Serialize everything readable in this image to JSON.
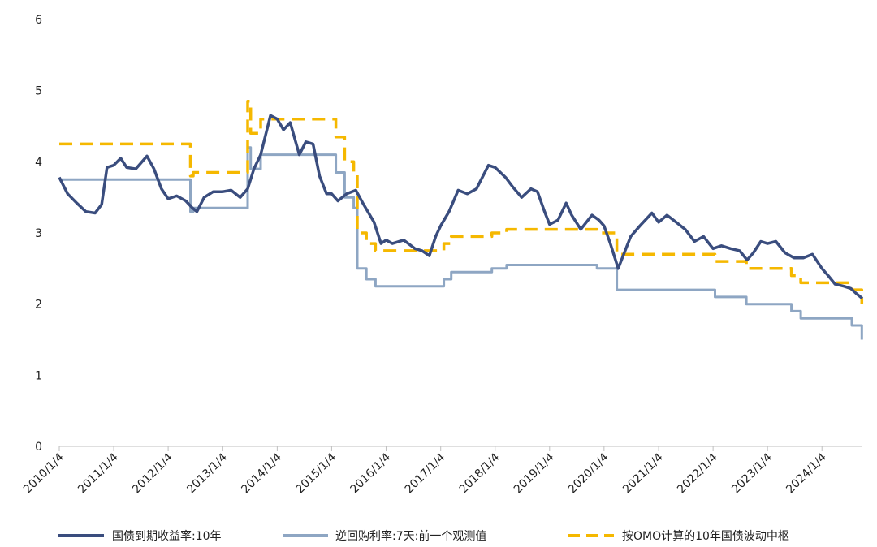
{
  "chart_data": {
    "type": "line",
    "title": "",
    "xlabel": "",
    "ylabel": "",
    "ylim": [
      0,
      6
    ],
    "yticks": [
      "0",
      "1",
      "2",
      "3",
      "4",
      "5",
      "6"
    ],
    "xticks": [
      "2010/1/4",
      "2011/1/4",
      "2012/1/4",
      "2013/1/4",
      "2014/1/4",
      "2015/1/4",
      "2016/1/4",
      "2017/1/4",
      "2018/1/4",
      "2019/1/4",
      "2020/1/4",
      "2021/1/4",
      "2022/1/4",
      "2023/1/4",
      "2024/1/4"
    ],
    "xlim": [
      "2010-01-04",
      "2024-10-01"
    ],
    "grid": false,
    "legend_position": "bottom",
    "series": [
      {
        "name": "国债到期收益率:10年",
        "color": "#3a4d7e",
        "style": "solid",
        "points": [
          [
            "2010-01-04",
            3.78
          ],
          [
            "2010-03-01",
            3.55
          ],
          [
            "2010-05-01",
            3.42
          ],
          [
            "2010-07-01",
            3.3
          ],
          [
            "2010-09-01",
            3.28
          ],
          [
            "2010-10-15",
            3.4
          ],
          [
            "2010-11-20",
            3.92
          ],
          [
            "2011-01-04",
            3.95
          ],
          [
            "2011-02-20",
            4.05
          ],
          [
            "2011-04-01",
            3.92
          ],
          [
            "2011-06-01",
            3.9
          ],
          [
            "2011-08-15",
            4.08
          ],
          [
            "2011-10-01",
            3.9
          ],
          [
            "2011-11-20",
            3.62
          ],
          [
            "2012-01-04",
            3.48
          ],
          [
            "2012-03-01",
            3.52
          ],
          [
            "2012-05-01",
            3.45
          ],
          [
            "2012-06-15",
            3.35
          ],
          [
            "2012-07-15",
            3.3
          ],
          [
            "2012-09-01",
            3.5
          ],
          [
            "2012-11-01",
            3.58
          ],
          [
            "2013-01-04",
            3.58
          ],
          [
            "2013-03-01",
            3.6
          ],
          [
            "2013-05-01",
            3.5
          ],
          [
            "2013-06-20",
            3.62
          ],
          [
            "2013-08-01",
            3.9
          ],
          [
            "2013-09-15",
            4.1
          ],
          [
            "2013-11-20",
            4.65
          ],
          [
            "2014-01-04",
            4.6
          ],
          [
            "2014-02-15",
            4.45
          ],
          [
            "2014-04-01",
            4.55
          ],
          [
            "2014-06-01",
            4.1
          ],
          [
            "2014-07-15",
            4.28
          ],
          [
            "2014-09-01",
            4.25
          ],
          [
            "2014-10-15",
            3.8
          ],
          [
            "2014-12-01",
            3.55
          ],
          [
            "2015-01-04",
            3.55
          ],
          [
            "2015-02-15",
            3.45
          ],
          [
            "2015-04-15",
            3.55
          ],
          [
            "2015-06-15",
            3.6
          ],
          [
            "2015-08-01",
            3.42
          ],
          [
            "2015-10-15",
            3.15
          ],
          [
            "2015-12-01",
            2.85
          ],
          [
            "2016-01-04",
            2.9
          ],
          [
            "2016-02-15",
            2.85
          ],
          [
            "2016-05-01",
            2.9
          ],
          [
            "2016-07-15",
            2.78
          ],
          [
            "2016-09-01",
            2.75
          ],
          [
            "2016-10-20",
            2.68
          ],
          [
            "2016-12-01",
            2.95
          ],
          [
            "2017-01-04",
            3.1
          ],
          [
            "2017-03-01",
            3.3
          ],
          [
            "2017-05-01",
            3.6
          ],
          [
            "2017-07-01",
            3.55
          ],
          [
            "2017-09-01",
            3.62
          ],
          [
            "2017-11-20",
            3.95
          ],
          [
            "2018-01-04",
            3.92
          ],
          [
            "2018-03-15",
            3.78
          ],
          [
            "2018-05-01",
            3.65
          ],
          [
            "2018-07-01",
            3.5
          ],
          [
            "2018-09-01",
            3.62
          ],
          [
            "2018-10-15",
            3.58
          ],
          [
            "2018-12-01",
            3.3
          ],
          [
            "2019-01-04",
            3.12
          ],
          [
            "2019-03-01",
            3.18
          ],
          [
            "2019-04-25",
            3.42
          ],
          [
            "2019-06-01",
            3.25
          ],
          [
            "2019-08-01",
            3.05
          ],
          [
            "2019-10-15",
            3.25
          ],
          [
            "2019-12-01",
            3.18
          ],
          [
            "2020-01-04",
            3.1
          ],
          [
            "2020-02-15",
            2.85
          ],
          [
            "2020-04-08",
            2.5
          ],
          [
            "2020-05-15",
            2.7
          ],
          [
            "2020-07-01",
            2.95
          ],
          [
            "2020-09-01",
            3.1
          ],
          [
            "2020-11-20",
            3.28
          ],
          [
            "2021-01-04",
            3.15
          ],
          [
            "2021-03-01",
            3.25
          ],
          [
            "2021-05-01",
            3.15
          ],
          [
            "2021-07-01",
            3.05
          ],
          [
            "2021-09-01",
            2.88
          ],
          [
            "2021-11-01",
            2.95
          ],
          [
            "2022-01-04",
            2.78
          ],
          [
            "2022-03-01",
            2.82
          ],
          [
            "2022-05-01",
            2.78
          ],
          [
            "2022-07-01",
            2.75
          ],
          [
            "2022-08-20",
            2.62
          ],
          [
            "2022-10-01",
            2.72
          ],
          [
            "2022-11-20",
            2.88
          ],
          [
            "2023-01-04",
            2.85
          ],
          [
            "2023-03-01",
            2.88
          ],
          [
            "2023-05-01",
            2.72
          ],
          [
            "2023-07-01",
            2.65
          ],
          [
            "2023-09-01",
            2.65
          ],
          [
            "2023-11-01",
            2.7
          ],
          [
            "2024-01-04",
            2.5
          ],
          [
            "2024-02-15",
            2.4
          ],
          [
            "2024-04-01",
            2.28
          ],
          [
            "2024-06-01",
            2.25
          ],
          [
            "2024-07-15",
            2.22
          ],
          [
            "2024-08-20",
            2.15
          ],
          [
            "2024-10-01",
            2.08
          ]
        ]
      },
      {
        "name": "逆回购利率:7天:前一个观测值",
        "color": "#8ea6c3",
        "style": "solid",
        "points": [
          [
            "2010-01-04",
            3.75
          ],
          [
            "2012-05-31",
            3.75
          ],
          [
            "2012-06-01",
            3.3
          ],
          [
            "2012-06-20",
            3.35
          ],
          [
            "2013-06-15",
            3.35
          ],
          [
            "2013-06-20",
            4.2
          ],
          [
            "2013-07-10",
            3.9
          ],
          [
            "2013-09-15",
            4.1
          ],
          [
            "2014-12-15",
            4.1
          ],
          [
            "2015-02-01",
            3.85
          ],
          [
            "2015-04-01",
            3.5
          ],
          [
            "2015-06-01",
            3.35
          ],
          [
            "2015-06-25",
            2.5
          ],
          [
            "2015-08-25",
            2.35
          ],
          [
            "2015-10-25",
            2.25
          ],
          [
            "2016-12-31",
            2.25
          ],
          [
            "2017-01-25",
            2.35
          ],
          [
            "2017-03-16",
            2.45
          ],
          [
            "2017-12-13",
            2.5
          ],
          [
            "2018-03-22",
            2.55
          ],
          [
            "2019-11-18",
            2.5
          ],
          [
            "2020-03-30",
            2.2
          ],
          [
            "2022-01-17",
            2.1
          ],
          [
            "2022-08-15",
            2.0
          ],
          [
            "2023-06-13",
            1.9
          ],
          [
            "2023-08-15",
            1.8
          ],
          [
            "2024-07-22",
            1.7
          ],
          [
            "2024-09-27",
            1.5
          ]
        ]
      },
      {
        "name": "按OMO计算的10年国债波动中枢",
        "color": "#f5b800",
        "style": "dashed",
        "points": [
          [
            "2010-01-04",
            4.25
          ],
          [
            "2012-05-31",
            4.25
          ],
          [
            "2012-06-01",
            3.8
          ],
          [
            "2012-06-20",
            3.85
          ],
          [
            "2013-06-15",
            3.85
          ],
          [
            "2013-06-20",
            4.85
          ],
          [
            "2013-07-10",
            4.4
          ],
          [
            "2013-09-15",
            4.6
          ],
          [
            "2014-12-15",
            4.6
          ],
          [
            "2015-02-01",
            4.35
          ],
          [
            "2015-04-01",
            4.0
          ],
          [
            "2015-06-01",
            3.85
          ],
          [
            "2015-06-25",
            3.0
          ],
          [
            "2015-08-25",
            2.85
          ],
          [
            "2015-10-25",
            2.75
          ],
          [
            "2016-12-31",
            2.75
          ],
          [
            "2017-01-25",
            2.85
          ],
          [
            "2017-03-16",
            2.95
          ],
          [
            "2017-12-13",
            3.0
          ],
          [
            "2018-03-22",
            3.05
          ],
          [
            "2019-11-18",
            3.0
          ],
          [
            "2020-03-30",
            2.7
          ],
          [
            "2022-01-17",
            2.6
          ],
          [
            "2022-08-15",
            2.5
          ],
          [
            "2023-06-13",
            2.4
          ],
          [
            "2023-08-15",
            2.3
          ],
          [
            "2024-07-22",
            2.2
          ],
          [
            "2024-09-27",
            2.0
          ]
        ]
      }
    ]
  }
}
